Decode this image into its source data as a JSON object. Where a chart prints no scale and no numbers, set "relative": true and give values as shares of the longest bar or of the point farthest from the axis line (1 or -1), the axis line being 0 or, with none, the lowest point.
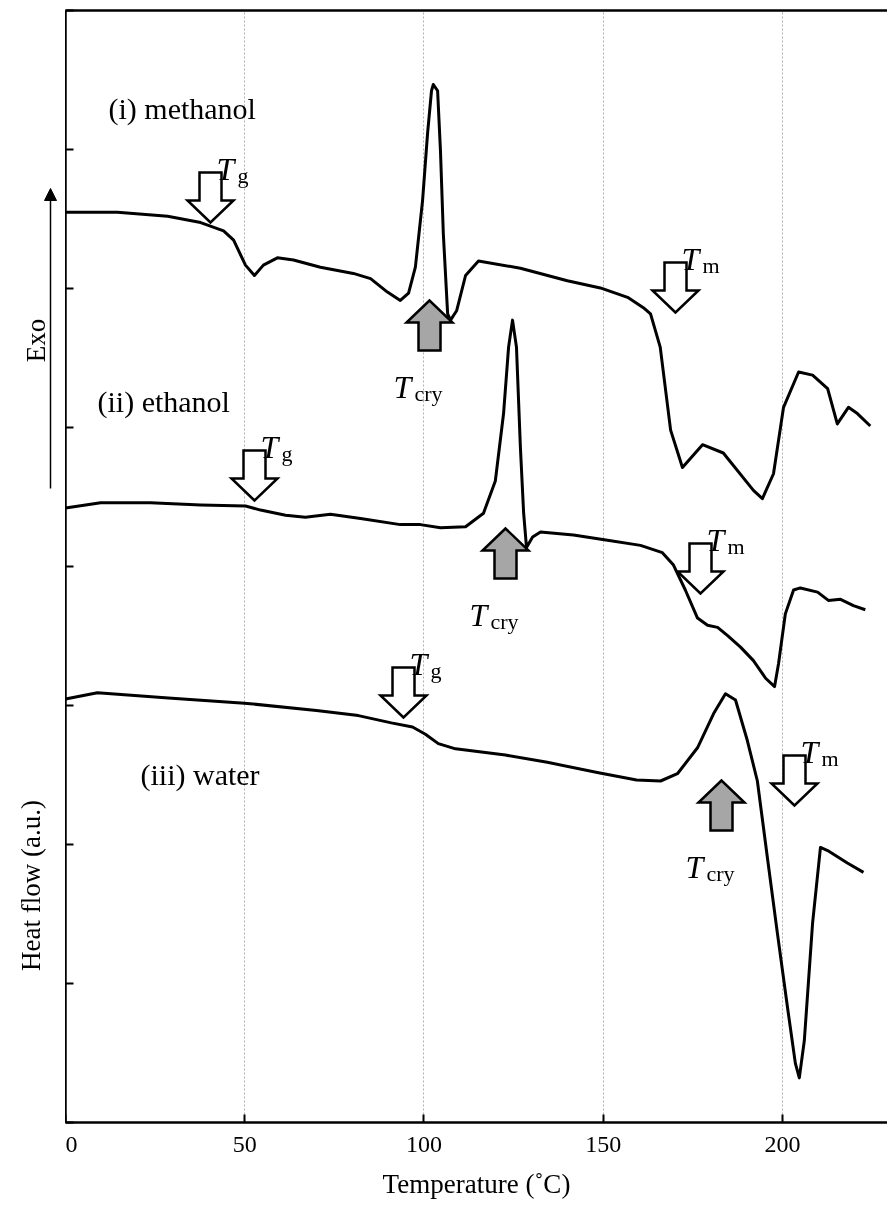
{
  "chart_data": {
    "type": "line",
    "relative": true,
    "xlabel": "Temperature (˚C)",
    "ylabel": "Heat flow (a.u.)",
    "xlim": [
      0,
      229.3
    ],
    "xticks": [
      0,
      50,
      100,
      150,
      200
    ],
    "grid": "x",
    "series": [
      {
        "name": "(i) methanol",
        "color": "#000000",
        "x": [
          0,
          14.5,
          28.5,
          37.7,
          44.1,
          46.9,
          50.2,
          52.7,
          55.2,
          59.1,
          63.6,
          71.1,
          80.3,
          85.1,
          89.8,
          93.4,
          95.7,
          97.6,
          99.6,
          101.0,
          102.1,
          102.6,
          103.8,
          104.6,
          105.4,
          106.6,
          107.4,
          109.1,
          111.6,
          115.2,
          126.9,
          140.0,
          149.2,
          156.8,
          161.2,
          163.2,
          165.9,
          168.8,
          172.1,
          177.7,
          183.5,
          191.9,
          194.4,
          197.5,
          200.3,
          204.5,
          208.4,
          212.6,
          215.3,
          218.4,
          220.9,
          224.5
        ],
        "values": [
          0.877,
          0.877,
          0.873,
          0.867,
          0.859,
          0.85,
          0.826,
          0.816,
          0.826,
          0.833,
          0.831,
          0.824,
          0.818,
          0.813,
          0.8,
          0.792,
          0.799,
          0.824,
          0.888,
          0.953,
          0.994,
          1.0,
          0.994,
          0.936,
          0.856,
          0.779,
          0.773,
          0.782,
          0.816,
          0.83,
          0.823,
          0.811,
          0.804,
          0.795,
          0.785,
          0.779,
          0.747,
          0.667,
          0.631,
          0.653,
          0.645,
          0.609,
          0.601,
          0.625,
          0.689,
          0.723,
          0.72,
          0.707,
          0.673,
          0.689,
          0.683,
          0.671
        ]
      },
      {
        "name": "(ii) ethanol",
        "color": "#000000",
        "x": [
          0,
          9.8,
          23.7,
          37.7,
          50.2,
          54.4,
          61.4,
          66.9,
          73.9,
          82.3,
          93.4,
          99.0,
          104.6,
          111.6,
          116.6,
          119.9,
          122.2,
          123.6,
          124.7,
          125.8,
          126.9,
          127.8,
          128.6,
          130.3,
          132.5,
          141.7,
          151.2,
          160.4,
          166.5,
          169.6,
          172.9,
          176.3,
          179.1,
          181.9,
          184.7,
          188.3,
          191.9,
          195.3,
          197.8,
          198.9,
          200.8,
          203.1,
          205.0,
          209.8,
          212.8,
          216.2,
          219.8,
          223.1
        ],
        "values": [
          0.592,
          0.597,
          0.597,
          0.595,
          0.594,
          0.59,
          0.585,
          0.583,
          0.586,
          0.582,
          0.576,
          0.576,
          0.573,
          0.574,
          0.587,
          0.618,
          0.683,
          0.747,
          0.773,
          0.747,
          0.65,
          0.587,
          0.554,
          0.564,
          0.569,
          0.566,
          0.561,
          0.556,
          0.549,
          0.537,
          0.513,
          0.486,
          0.479,
          0.477,
          0.469,
          0.458,
          0.445,
          0.428,
          0.42,
          0.442,
          0.49,
          0.513,
          0.515,
          0.511,
          0.503,
          0.504,
          0.498,
          0.494
        ]
      },
      {
        "name": "(iii) water",
        "color": "#000000",
        "x": [
          0,
          8.9,
          28.7,
          49.9,
          70.0,
          81.7,
          90.9,
          96.8,
          100.4,
          104.0,
          108.8,
          122.7,
          134.4,
          148.7,
          159.3,
          166.0,
          170.7,
          176.3,
          180.8,
          184.1,
          186.9,
          190.2,
          193.0,
          195.8,
          198.6,
          201.4,
          203.6,
          204.7,
          206.1,
          208.4,
          210.6,
          212.6,
          218.1,
          222.6
        ],
        "values": [
          0.408,
          0.414,
          0.409,
          0.404,
          0.397,
          0.392,
          0.385,
          0.381,
          0.374,
          0.365,
          0.36,
          0.354,
          0.347,
          0.337,
          0.33,
          0.329,
          0.336,
          0.361,
          0.394,
          0.413,
          0.407,
          0.368,
          0.329,
          0.255,
          0.182,
          0.111,
          0.057,
          0.043,
          0.079,
          0.192,
          0.265,
          0.262,
          0.25,
          0.241
        ]
      }
    ],
    "annotations": [
      "Exo",
      "T$_{g}$",
      "T$_{cry}$",
      "T$_{m}$",
      "T$_{g}$",
      "T$_{cry}$",
      "T$_{m}$",
      "T$_{g}$",
      "T$_{cry}$",
      "T$_{m}$"
    ]
  }
}
